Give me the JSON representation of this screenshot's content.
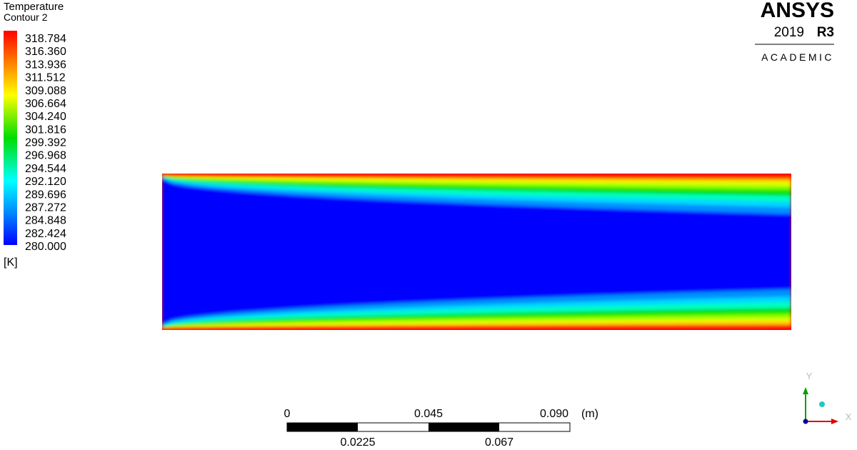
{
  "legend": {
    "title": "Temperature",
    "subtitle": "Contour 2",
    "labels": [
      "318.784",
      "316.360",
      "313.936",
      "311.512",
      "309.088",
      "306.664",
      "304.240",
      "301.816",
      "299.392",
      "296.968",
      "294.544",
      "292.120",
      "289.696",
      "287.272",
      "284.848",
      "282.424",
      "280.000"
    ],
    "unit": "[K]"
  },
  "logo": {
    "brand": "ANSYS",
    "version": "2019",
    "release": "R3",
    "edition": "ACADEMIC"
  },
  "scale_bar": {
    "top_labels": [
      "0",
      "0.045",
      "0.090"
    ],
    "unit": "(m)",
    "bottom_labels": [
      "0.0225",
      "0.067"
    ]
  },
  "triad": {
    "y_label": "Y",
    "x_label": "X"
  }
}
